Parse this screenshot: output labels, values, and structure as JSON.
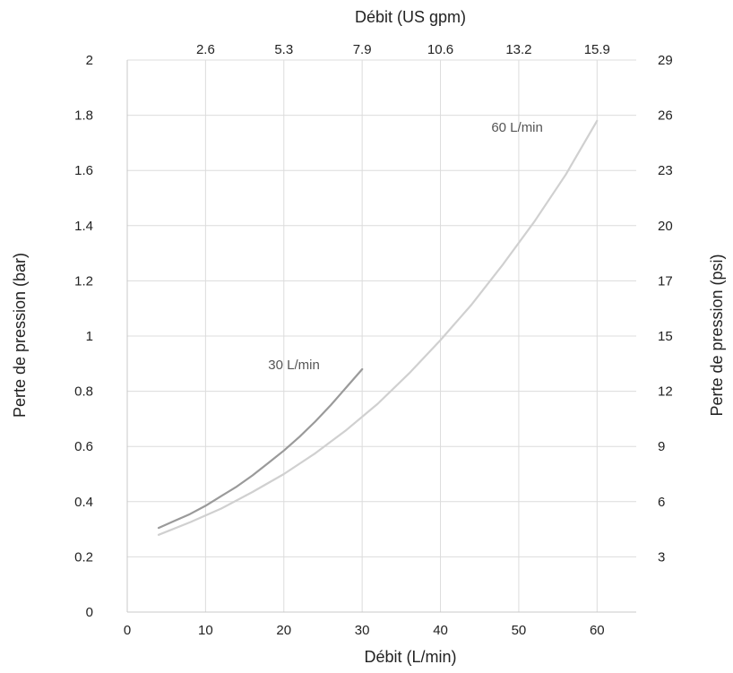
{
  "chart_data": {
    "type": "line",
    "title": "",
    "xlabel": "Débit (L/min)",
    "x2label": "Débit (US gpm)",
    "ylabel": "Perte de pression (bar)",
    "y2label": "Perte de pression (psi)",
    "xlim": [
      0,
      65
    ],
    "ylim": [
      0,
      2
    ],
    "grid": true,
    "x_ticks": [
      "0",
      "10",
      "20",
      "30",
      "40",
      "50",
      "60"
    ],
    "x_tick_values": [
      0,
      10,
      20,
      30,
      40,
      50,
      60
    ],
    "x2_ticks": [
      "2.6",
      "5.3",
      "7.9",
      "10.6",
      "13.2",
      "15.9"
    ],
    "x2_tick_positions_lpm": [
      10,
      20,
      30,
      40,
      50,
      60
    ],
    "y_ticks": [
      "0",
      "0.2",
      "0.4",
      "0.6",
      "0.8",
      "1",
      "1.2",
      "1.4",
      "1.6",
      "1.8",
      "2"
    ],
    "y_tick_values": [
      0,
      0.2,
      0.4,
      0.6,
      0.8,
      1.0,
      1.2,
      1.4,
      1.6,
      1.8,
      2.0
    ],
    "y2_ticks": [
      "3",
      "6",
      "9",
      "12",
      "15",
      "17",
      "20",
      "23",
      "26",
      "29"
    ],
    "y2_tick_positions_bar": [
      0.2,
      0.4,
      0.6,
      0.8,
      1.0,
      1.2,
      1.4,
      1.6,
      1.8,
      2.0
    ],
    "series": [
      {
        "name": "30 L/min",
        "color": "#9a9a9a",
        "x": [
          4,
          6,
          8,
          10,
          12,
          14,
          16,
          18,
          20,
          22,
          24,
          26,
          28,
          30
        ],
        "y": [
          0.305,
          0.33,
          0.355,
          0.385,
          0.42,
          0.455,
          0.495,
          0.54,
          0.585,
          0.635,
          0.69,
          0.75,
          0.815,
          0.88
        ],
        "label_anchor": {
          "x": 18,
          "y": 0.88
        }
      },
      {
        "name": "60 L/min",
        "color": "#d0d0d0",
        "x": [
          4,
          8,
          12,
          16,
          20,
          24,
          28,
          32,
          36,
          40,
          44,
          48,
          52,
          56,
          60
        ],
        "y": [
          0.28,
          0.325,
          0.375,
          0.435,
          0.5,
          0.575,
          0.66,
          0.755,
          0.865,
          0.985,
          1.115,
          1.26,
          1.415,
          1.585,
          1.78
        ],
        "label_anchor": {
          "x": 46.5,
          "y": 1.74
        }
      }
    ]
  }
}
